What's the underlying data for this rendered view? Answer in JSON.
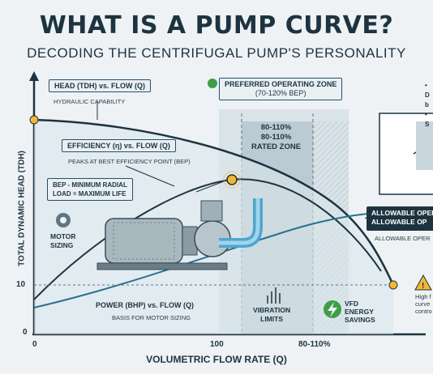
{
  "title": "WHAT IS A PUMP CURVE?",
  "subtitle": "DECODING THE CENTRIFUGAL PUMP'S PERSONALITY",
  "y_axis_label": "TOTAL DYNAMIC HEAD (TDH)",
  "x_axis_label": "VOLUMETRIC FLOW RATE (Q)",
  "ticks": {
    "x0": "0",
    "x100": "100",
    "x110": "80-110%",
    "y0": "0",
    "y10": "10"
  },
  "head_curve": {
    "title": "HEAD (TDH) vs. FLOW (Q)",
    "desc": "HYDRAULIC CAPABILITY"
  },
  "efficiency_curve": {
    "title": "EFFICIENCY (η) vs. FLOW (Q)",
    "desc": "PEAKS AT BEST EFFICIENCY POINT (BEP)"
  },
  "bep_note": {
    "line1": "BEP - MINIMUM RADIAL",
    "line2": "LOAD = MAXIMUM LIFE"
  },
  "preferred_zone": {
    "line1": "PREFERRED OPERATING ZONE",
    "line2": "(70-120% BEP)"
  },
  "rated_zone": {
    "line1": "80-110%",
    "line2": "80-110%",
    "line3": "RATED ZONE"
  },
  "motor_sizing": {
    "line1": "MOTOR",
    "line2": "SIZING"
  },
  "power_curve": {
    "title": "POWER (BHP) vs. FLOW (Q)",
    "desc": "BASIS FOR MOTOR SIZING"
  },
  "vibration": {
    "line1": "VIBRATION",
    "line2": "LIMITS"
  },
  "vfd": {
    "line1": "VFD",
    "line2": "ENERGY",
    "line3": "SAVINGS"
  },
  "allowable": {
    "line1": "ALLOWABLE OPER",
    "line2": "ALLOWABLE OP",
    "line3": "ALLOWABLE OPER"
  },
  "right_top": {
    "line1": "• D",
    "line2": "b",
    "line3": "• S"
  },
  "warning": {
    "line1": "High f",
    "line2": "curve",
    "line3": "contro"
  },
  "colors": {
    "navy": "#1e3340",
    "teal": "#2a6f8f",
    "zone": "#c9d6dc",
    "accent_yellow": "#f5b733",
    "green": "#3f9d4a"
  }
}
